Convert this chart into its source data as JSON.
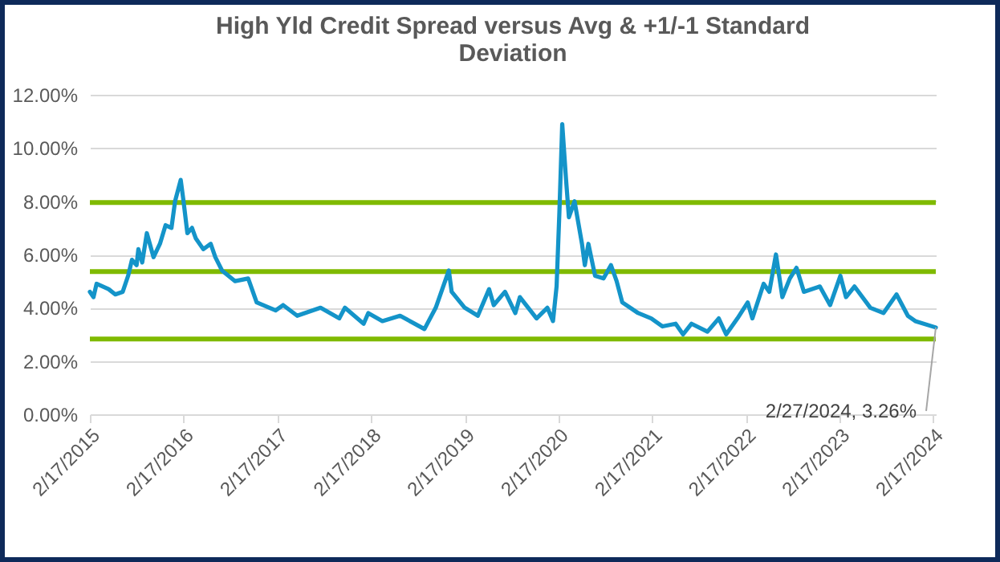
{
  "chart_data": {
    "type": "line",
    "title": "High Yld Credit Spread versus Avg & +1/-1 Standard Deviation",
    "x": [
      "2015-02-17",
      "2015-03-03",
      "2015-03-15",
      "2015-05-01",
      "2015-05-27",
      "2015-06-25",
      "2015-07-16",
      "2015-07-31",
      "2015-08-18",
      "2015-08-25",
      "2015-09-09",
      "2015-09-27",
      "2015-10-23",
      "2015-11-17",
      "2015-12-09",
      "2016-01-01",
      "2016-01-15",
      "2016-02-06",
      "2016-02-17",
      "2016-03-03",
      "2016-03-21",
      "2016-04-05",
      "2016-05-04",
      "2016-06-02",
      "2016-06-20",
      "2016-07-16",
      "2016-09-05",
      "2016-10-26",
      "2016-11-28",
      "2017-02-10",
      "2017-03-11",
      "2017-05-05",
      "2017-08-04",
      "2017-10-16",
      "2017-11-07",
      "2018-01-19",
      "2018-02-06",
      "2018-04-02",
      "2018-06-10",
      "2018-09-13",
      "2018-10-27",
      "2018-12-17",
      "2018-12-28",
      "2019-02-17",
      "2019-04-09",
      "2019-05-23",
      "2019-06-10",
      "2019-07-24",
      "2019-09-02",
      "2019-09-20",
      "2019-11-24",
      "2020-01-05",
      "2020-01-27",
      "2020-02-10",
      "2020-02-21",
      "2020-03-03",
      "2020-03-18",
      "2020-03-29",
      "2020-04-20",
      "2020-05-19",
      "2020-05-30",
      "2020-06-13",
      "2020-07-09",
      "2020-08-11",
      "2020-09-09",
      "2020-10-01",
      "2020-10-23",
      "2020-12-24",
      "2021-02-13",
      "2021-03-29",
      "2021-05-19",
      "2021-06-17",
      "2021-07-20",
      "2021-09-20",
      "2021-11-03",
      "2021-12-02",
      "2022-01-15",
      "2022-02-24",
      "2022-03-14",
      "2022-04-27",
      "2022-05-19",
      "2022-06-14",
      "2022-07-09",
      "2022-08-07",
      "2022-09-02",
      "2022-10-01",
      "2022-12-02",
      "2023-01-11",
      "2023-02-20",
      "2023-03-14",
      "2023-04-16",
      "2023-06-17",
      "2023-08-07",
      "2023-09-27",
      "2023-11-10",
      "2023-12-09",
      "2024-02-27"
    ],
    "series": [
      {
        "color": "#1494c9",
        "values": [
          4.6,
          4.4,
          4.9,
          4.7,
          4.5,
          4.6,
          5.2,
          5.8,
          5.6,
          6.2,
          5.7,
          6.8,
          5.9,
          6.4,
          7.1,
          7.0,
          8.0,
          8.8,
          8.0,
          6.8,
          7.0,
          6.6,
          6.2,
          6.4,
          5.9,
          5.4,
          5.0,
          5.1,
          4.2,
          3.9,
          4.1,
          3.7,
          4.0,
          3.6,
          4.0,
          3.4,
          3.8,
          3.5,
          3.7,
          3.2,
          4.0,
          5.4,
          4.6,
          4.0,
          3.7,
          4.7,
          4.1,
          4.6,
          3.8,
          4.4,
          3.6,
          4.0,
          3.5,
          4.8,
          7.6,
          10.9,
          8.8,
          7.4,
          8.0,
          6.4,
          5.6,
          6.4,
          5.2,
          5.1,
          5.6,
          5.0,
          4.2,
          3.8,
          3.6,
          3.3,
          3.4,
          3.0,
          3.4,
          3.1,
          3.6,
          3.0,
          3.6,
          4.2,
          3.6,
          4.9,
          4.6,
          6.0,
          4.4,
          5.1,
          5.5,
          4.6,
          4.8,
          4.1,
          5.2,
          4.4,
          4.8,
          4.0,
          3.8,
          4.5,
          3.7,
          3.5,
          3.26
        ]
      }
    ],
    "ref_lines": [
      {
        "axis": "y",
        "value": 7.95,
        "color": "#7fba00"
      },
      {
        "axis": "y",
        "value": 5.36,
        "color": "#7fba00"
      },
      {
        "axis": "y",
        "value": 2.83,
        "color": "#7fba00"
      }
    ],
    "annotations": [
      {
        "text": "2/27/2024, 3.26%",
        "x": "2024-02-27",
        "y": 3.26
      }
    ],
    "xlim": [
      "2015-02-17",
      "2024-02-27"
    ],
    "xticks": [
      {
        "value": "2015-02-17",
        "label": "2/17/2015"
      },
      {
        "value": "2016-02-17",
        "label": "2/17/2016"
      },
      {
        "value": "2017-02-17",
        "label": "2/17/2017"
      },
      {
        "value": "2018-02-17",
        "label": "2/17/2018"
      },
      {
        "value": "2019-02-17",
        "label": "2/17/2019"
      },
      {
        "value": "2020-02-17",
        "label": "2/17/2020"
      },
      {
        "value": "2021-02-17",
        "label": "2/17/2021"
      },
      {
        "value": "2022-02-17",
        "label": "2/17/2022"
      },
      {
        "value": "2023-02-17",
        "label": "2/17/2023"
      },
      {
        "value": "2024-02-17",
        "label": "2/17/2024"
      }
    ],
    "ylim": [
      0,
      12
    ],
    "yticks": [
      {
        "value": 0,
        "label": "0.00%"
      },
      {
        "value": 2,
        "label": "2.00%"
      },
      {
        "value": 4,
        "label": "4.00%"
      },
      {
        "value": 6,
        "label": "6.00%"
      },
      {
        "value": 8,
        "label": "8.00%"
      },
      {
        "value": 10,
        "label": "10.00%"
      },
      {
        "value": 12,
        "label": "12.00%"
      }
    ],
    "grid": "y",
    "legend": false
  }
}
